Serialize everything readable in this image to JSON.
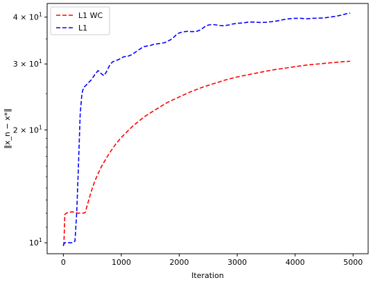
{
  "chart_data": {
    "type": "line",
    "title": "",
    "xlabel": "Iteration",
    "ylabel": "‖x_n − x*‖",
    "yscale": "log",
    "xlim": [
      -280,
      5260
    ],
    "ylim": [
      9.35,
      43.5
    ],
    "grid": false,
    "legend_position": "top-left",
    "x_ticks": [
      {
        "value": 0,
        "label": "0"
      },
      {
        "value": 1000,
        "label": "1000"
      },
      {
        "value": 2000,
        "label": "2000"
      },
      {
        "value": 3000,
        "label": "3000"
      },
      {
        "value": 4000,
        "label": "4000"
      },
      {
        "value": 5000,
        "label": "5000"
      }
    ],
    "y_ticks": [
      {
        "value": 10,
        "base": "10",
        "exp": "1"
      },
      {
        "value": 20,
        "base": "2 × 10",
        "exp": "1"
      },
      {
        "value": 30,
        "base": "3 × 10",
        "exp": "1"
      },
      {
        "value": 40,
        "base": "4 × 10",
        "exp": "1"
      }
    ],
    "series": [
      {
        "name": "L1 WC",
        "color": "#ff0000",
        "x": [
          0,
          10,
          25,
          50,
          100,
          150,
          200,
          250,
          300,
          350,
          380,
          400,
          450,
          500,
          550,
          600,
          650,
          700,
          800,
          900,
          1000,
          1100,
          1200,
          1300,
          1400,
          1500,
          1600,
          1700,
          1800,
          1900,
          2000,
          2200,
          2400,
          2600,
          2800,
          3000,
          3200,
          3400,
          3600,
          3800,
          4000,
          4200,
          4400,
          4600,
          4800,
          4950
        ],
        "y": [
          9.8,
          10.0,
          11.9,
          12.0,
          12.05,
          12.1,
          12.05,
          12.0,
          12.0,
          12.0,
          12.05,
          12.4,
          13.2,
          14.0,
          14.7,
          15.3,
          15.9,
          16.4,
          17.4,
          18.3,
          19.1,
          19.8,
          20.5,
          21.1,
          21.7,
          22.2,
          22.7,
          23.2,
          23.7,
          24.1,
          24.5,
          25.3,
          26.0,
          26.6,
          27.2,
          27.7,
          28.1,
          28.5,
          28.9,
          29.2,
          29.5,
          29.8,
          30.0,
          30.2,
          30.4,
          30.5
        ]
      },
      {
        "name": "L1",
        "color": "#0000ff",
        "x": [
          0,
          20,
          50,
          100,
          150,
          200,
          230,
          260,
          290,
          320,
          350,
          380,
          420,
          480,
          550,
          600,
          650,
          700,
          750,
          800,
          850,
          900,
          950,
          1000,
          1050,
          1100,
          1150,
          1200,
          1250,
          1300,
          1350,
          1400,
          1500,
          1550,
          1600,
          1650,
          1700,
          1750,
          1800,
          1850,
          1900,
          1950,
          2000,
          2050,
          2100,
          2150,
          2200,
          2250,
          2300,
          2350,
          2400,
          2450,
          2500,
          2550,
          2600,
          2650,
          2700,
          2750,
          2800,
          2850,
          2900,
          2950,
          3000,
          3100,
          3200,
          3300,
          3400,
          3500,
          3600,
          3700,
          3800,
          3900,
          4000,
          4100,
          4200,
          4300,
          4400,
          4500,
          4600,
          4700,
          4800,
          4900,
          4950
        ],
        "y": [
          9.85,
          10.0,
          10.0,
          10.0,
          10.0,
          10.1,
          12.0,
          16.0,
          22.0,
          25.0,
          26.0,
          26.2,
          26.6,
          27.2,
          28.2,
          28.8,
          28.3,
          27.9,
          28.7,
          29.8,
          30.4,
          30.6,
          30.8,
          31.1,
          31.4,
          31.4,
          31.6,
          31.9,
          32.3,
          32.7,
          33.1,
          33.4,
          33.6,
          33.8,
          33.9,
          34.0,
          34.1,
          34.2,
          34.5,
          34.8,
          35.3,
          35.9,
          36.3,
          36.5,
          36.6,
          36.65,
          36.6,
          36.6,
          36.65,
          36.9,
          37.3,
          37.8,
          38.1,
          38.2,
          38.2,
          38.1,
          38.0,
          37.95,
          38.0,
          38.1,
          38.3,
          38.4,
          38.5,
          38.6,
          38.8,
          38.8,
          38.7,
          38.75,
          38.9,
          39.1,
          39.4,
          39.6,
          39.7,
          39.7,
          39.6,
          39.7,
          39.75,
          39.8,
          40.0,
          40.2,
          40.5,
          40.9,
          41.0
        ]
      }
    ]
  }
}
